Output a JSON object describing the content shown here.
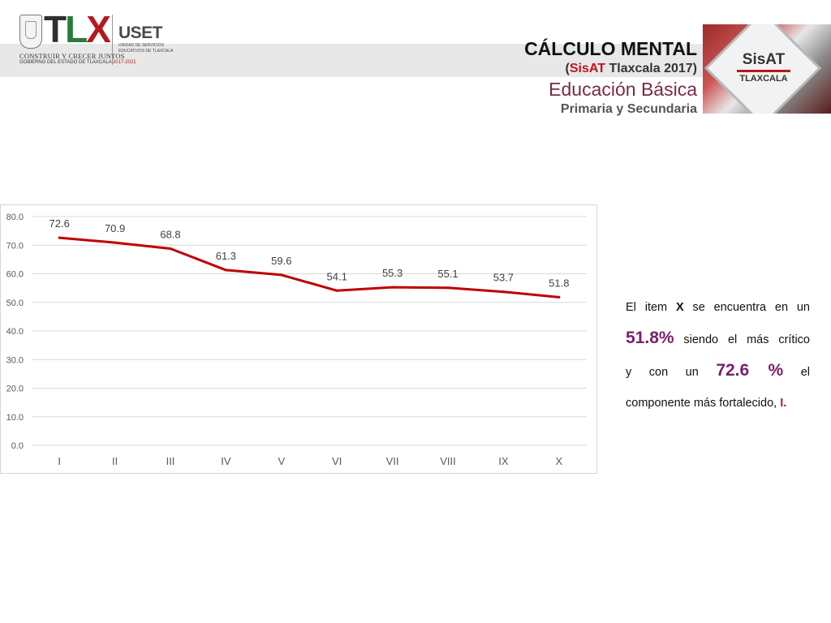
{
  "header": {
    "title": "CÁLCULO MENTAL",
    "sub_open": "(",
    "sub_red": "SisAT",
    "sub_rest": " Tlaxcala 2017)",
    "edu": "Educación Básica",
    "level": "Primaria y Secundaria"
  },
  "logos": {
    "tlx_t": "T",
    "tlx_l": "L",
    "tlx_x": "X",
    "slogan": "CONSTRUIR Y CRECER JUNTOS",
    "gov": "GOBIERNO DEL ESTADO DE TLAXCALA",
    "gov_years": "2017-2021",
    "uset": "USET",
    "uset_sub1": "UNIDAD DE SERVICIOS",
    "uset_sub2": "EDUCATIVOS DE TLAXCALA",
    "sisat_name": "SisAT",
    "sisat_state": "TLAXCALA"
  },
  "chart_data": {
    "type": "line",
    "categories": [
      "I",
      "II",
      "III",
      "IV",
      "V",
      "VI",
      "VII",
      "VIII",
      "IX",
      "X"
    ],
    "values": [
      72.6,
      70.9,
      68.8,
      61.3,
      59.6,
      54.1,
      55.3,
      55.1,
      53.7,
      51.8
    ],
    "labels": [
      "72.6",
      "70.9",
      "68.8",
      "61.3",
      "59.6",
      "54.1",
      "55.3",
      "55.1",
      "53.7",
      "51.8"
    ],
    "yticks": [
      "0.0",
      "10.0",
      "20.0",
      "30.0",
      "40.0",
      "50.0",
      "60.0",
      "70.0",
      "80.0"
    ],
    "ylim": [
      0,
      80
    ],
    "grid": true,
    "line_color": "#c00000",
    "title": "",
    "xlabel": "",
    "ylabel": ""
  },
  "side": {
    "p1_a": "El item ",
    "p1_b": "X",
    "p1_c": " se encuentra en un",
    "p2_big": "51.8%",
    "p2_rest": " siendo el más crítico",
    "p3_a": "y con un ",
    "p3_big": "72.6 %",
    "p3_c": " el",
    "p4_a": "componente más fortalecido, ",
    "p4_b": "I."
  },
  "colors": {
    "accent_red": "#c0141c",
    "accent_purple": "#7a1f6a",
    "band_gray": "#e8e8e8"
  }
}
